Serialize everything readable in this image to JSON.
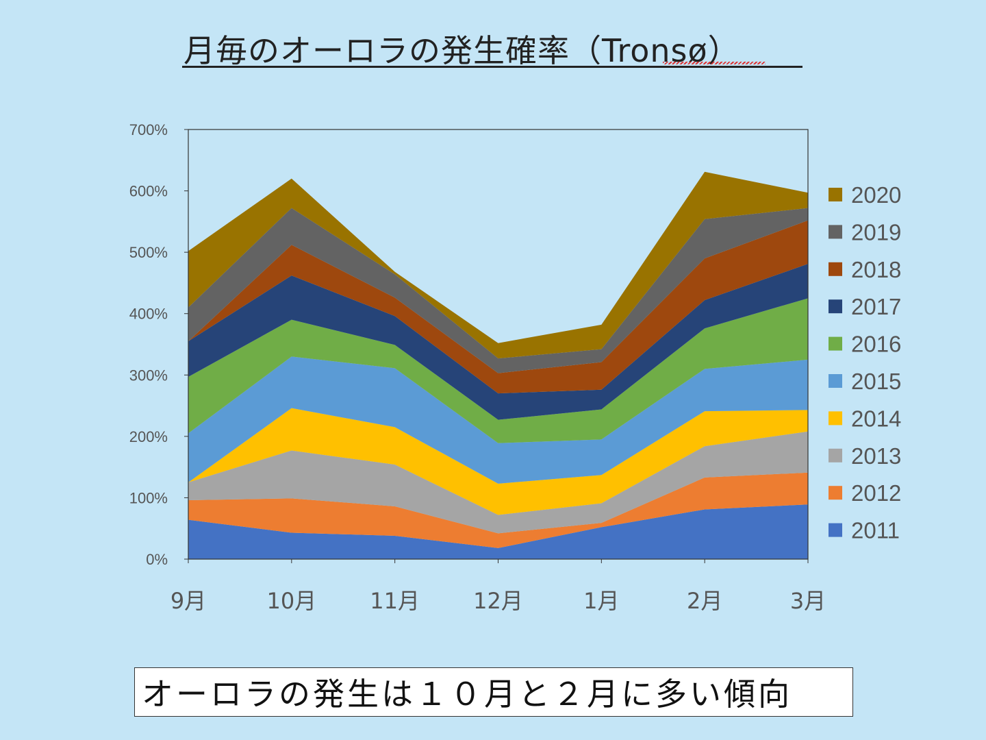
{
  "title": "月毎のオーロラの発生確率（Tronsø）",
  "caption": "オーロラの発生は１０月と２月に多い傾向",
  "chart_data": {
    "type": "area",
    "stacked": true,
    "categories": [
      "9月",
      "10月",
      "11月",
      "12月",
      "1月",
      "2月",
      "3月"
    ],
    "yticks": [
      "0%",
      "100%",
      "200%",
      "300%",
      "400%",
      "500%",
      "600%",
      "700%"
    ],
    "ylim": [
      0,
      700
    ],
    "grid": false,
    "legend_position": "right",
    "series": [
      {
        "name": "2011",
        "color": "#4472c4",
        "values": [
          64,
          43,
          38,
          18,
          52,
          81,
          89
        ]
      },
      {
        "name": "2012",
        "color": "#ed7d31",
        "values": [
          32,
          56,
          48,
          24,
          7,
          52,
          52
        ]
      },
      {
        "name": "2013",
        "color": "#a5a5a5",
        "values": [
          29,
          78,
          68,
          30,
          32,
          51,
          67
        ]
      },
      {
        "name": "2014",
        "color": "#ffc000",
        "values": [
          0,
          69,
          61,
          51,
          46,
          57,
          35
        ]
      },
      {
        "name": "2015",
        "color": "#5b9bd5",
        "values": [
          80,
          84,
          96,
          66,
          58,
          69,
          82
        ]
      },
      {
        "name": "2016",
        "color": "#70ad47",
        "values": [
          92,
          60,
          38,
          38,
          49,
          66,
          100
        ]
      },
      {
        "name": "2017",
        "color": "#264478",
        "values": [
          58,
          72,
          47,
          43,
          32,
          46,
          56
        ]
      },
      {
        "name": "2018",
        "color": "#9e480e",
        "values": [
          0,
          50,
          30,
          33,
          45,
          68,
          71
        ]
      },
      {
        "name": "2019",
        "color": "#636363",
        "values": [
          55,
          60,
          38,
          24,
          21,
          64,
          20
        ]
      },
      {
        "name": "2020",
        "color": "#997300",
        "values": [
          92,
          48,
          4,
          25,
          40,
          77,
          25
        ]
      }
    ]
  }
}
